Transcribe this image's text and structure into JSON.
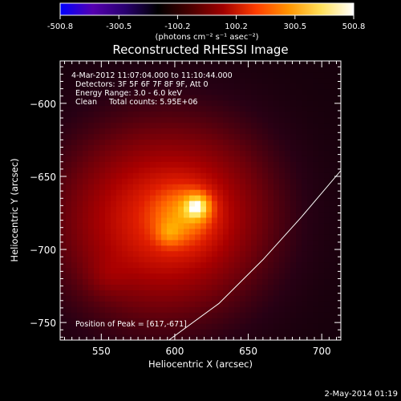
{
  "colorbar": {
    "tick_labels": [
      "-500.8",
      "-300.5",
      "-100.2",
      "100.2",
      "300.5",
      "500.8"
    ],
    "units_label": "(photons cm⁻² s⁻¹ asec⁻²)",
    "stops": [
      "#0000ff",
      "#5500b0",
      "#28006e",
      "#000000",
      "#4a0000",
      "#a00000",
      "#ff3d00",
      "#ff9400",
      "#ffe05a",
      "#ffffff"
    ]
  },
  "chart_data": {
    "type": "heatmap",
    "title": "Reconstructed RHESSI Image",
    "xlabel": "Heliocentric X (arcsec)",
    "ylabel": "Heliocentric Y (arcsec)",
    "xlim": [
      522,
      713
    ],
    "ylim": [
      -762,
      -571
    ],
    "x_ticks": [
      550,
      600,
      650,
      700
    ],
    "y_ticks": [
      -600,
      -650,
      -700,
      -750
    ],
    "x_tick_labels": [
      "550",
      "600",
      "650",
      "700"
    ],
    "y_tick_labels": [
      "−600",
      "−650",
      "−700",
      "−750"
    ],
    "value_range": [
      -500.8,
      500.8
    ],
    "peak": [
      617,
      -671
    ],
    "limb_points": [
      [
        596,
        -762
      ],
      [
        630,
        -737
      ],
      [
        660,
        -707
      ],
      [
        686,
        -678
      ],
      [
        713,
        -646
      ]
    ],
    "sources": [
      {
        "x": 590,
        "y": -680,
        "sx": 48,
        "sy": 46,
        "amp": 0.52
      },
      {
        "x": 607,
        "y": -676,
        "sx": 15,
        "sy": 15,
        "amp": 0.22
      },
      {
        "x": 616,
        "y": -670,
        "sx": 6.5,
        "sy": 6.5,
        "amp": 0.3
      },
      {
        "x": 596,
        "y": -689,
        "sx": 6,
        "sy": 6,
        "amp": 0.12
      },
      {
        "x": 554,
        "y": -718,
        "sx": 9,
        "sy": 9,
        "amp": 0.06
      },
      {
        "x": 640,
        "y": -660,
        "sx": 30,
        "sy": 40,
        "amp": 0.05
      }
    ],
    "info_lines": [
      " 4-Mar-2012 11:07:04.000 to 11:10:44.000",
      "Detectors: 3F 5F 6F 7F 8F 9F, Att 0",
      "Energy Range: 3.0 - 6.0 keV",
      "Clean     Total counts: 5.95E+06"
    ],
    "peak_label": "Position of Peak = [617,-671]"
  },
  "timestamp": "2-May-2014 01:19"
}
